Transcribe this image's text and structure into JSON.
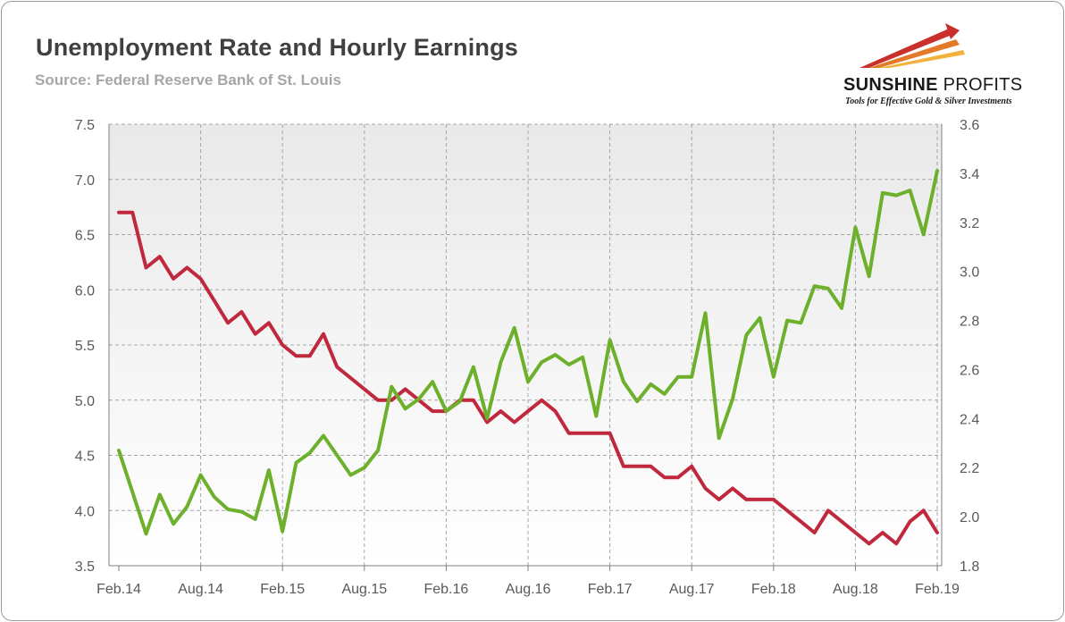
{
  "header": {
    "title": "Unemployment Rate and Hourly Earnings",
    "subtitle": "Source: Federal Reserve Bank of St. Louis"
  },
  "logo": {
    "name_bold": "SUNSHINE",
    "name_light": " PROFITS",
    "tagline": "Tools for Effective Gold & Silver Investments"
  },
  "colors": {
    "unemployment": "#c0283d",
    "earnings": "#6cb02c",
    "plot_bg": "#f2f2f2",
    "grid": "#a6a6a6"
  },
  "chart_data": {
    "type": "line",
    "title": "Unemployment Rate and Hourly Earnings",
    "subtitle": "Source: Federal Reserve Bank of St. Louis",
    "x_start": "Feb.14",
    "x_end": "Feb.19",
    "x_tick_labels": [
      "Feb.14",
      "Aug.14",
      "Feb.15",
      "Aug.15",
      "Feb.16",
      "Aug.16",
      "Feb.17",
      "Aug.17",
      "Feb.18",
      "Aug.18",
      "Feb.19"
    ],
    "y_left": {
      "min": 3.5,
      "max": 7.5,
      "ticks": [
        "3.5",
        "4.0",
        "4.5",
        "5.0",
        "5.5",
        "6.0",
        "6.5",
        "7.0",
        "7.5"
      ]
    },
    "y_right": {
      "min": 1.8,
      "max": 3.6,
      "ticks": [
        "1.8",
        "2.0",
        "2.2",
        "2.4",
        "2.6",
        "2.8",
        "3.0",
        "3.2",
        "3.4",
        "3.6"
      ]
    },
    "grid": true,
    "series": [
      {
        "axis": "left",
        "color": "#c0283d",
        "values": [
          6.7,
          6.7,
          6.2,
          6.3,
          6.1,
          6.2,
          6.1,
          5.9,
          5.7,
          5.8,
          5.6,
          5.7,
          5.5,
          5.4,
          5.4,
          5.6,
          5.3,
          5.2,
          5.1,
          5.0,
          5.0,
          5.1,
          5.0,
          4.9,
          4.9,
          5.0,
          5.0,
          4.8,
          4.9,
          4.8,
          4.9,
          5.0,
          4.9,
          4.7,
          4.7,
          4.7,
          4.7,
          4.4,
          4.4,
          4.4,
          4.3,
          4.3,
          4.4,
          4.2,
          4.1,
          4.2,
          4.1,
          4.1,
          4.1,
          4.0,
          3.9,
          3.8,
          4.0,
          3.9,
          3.8,
          3.7,
          3.8,
          3.7,
          3.9,
          4.0,
          3.8
        ]
      },
      {
        "axis": "right",
        "color": "#6cb02c",
        "values": [
          2.27,
          2.1,
          1.93,
          2.09,
          1.97,
          2.04,
          2.17,
          2.08,
          2.03,
          2.02,
          1.99,
          2.19,
          1.94,
          2.22,
          2.26,
          2.33,
          2.25,
          2.17,
          2.2,
          2.27,
          2.53,
          2.44,
          2.48,
          2.55,
          2.43,
          2.47,
          2.61,
          2.4,
          2.63,
          2.77,
          2.55,
          2.63,
          2.66,
          2.62,
          2.65,
          2.41,
          2.72,
          2.55,
          2.47,
          2.54,
          2.5,
          2.57,
          2.57,
          2.83,
          2.32,
          2.48,
          2.74,
          2.81,
          2.57,
          2.8,
          2.79,
          2.94,
          2.93,
          2.85,
          3.18,
          2.98,
          3.32,
          3.31,
          3.33,
          3.15,
          3.41
        ]
      }
    ]
  }
}
